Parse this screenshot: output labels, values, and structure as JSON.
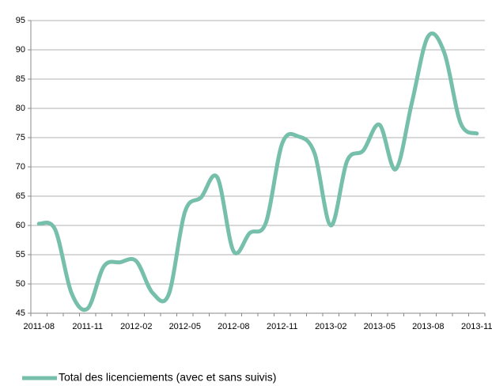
{
  "chart_data": {
    "type": "line",
    "categories": [
      "2011-08",
      null,
      null,
      "2011-11",
      null,
      null,
      "2012-02",
      null,
      null,
      "2012-05",
      null,
      null,
      "2012-08",
      null,
      null,
      "2012-11",
      null,
      null,
      "2013-02",
      null,
      null,
      "2013-05",
      null,
      null,
      "2013-08",
      null,
      null,
      "2013-11"
    ],
    "series": [
      {
        "name": "Total des licenciements (avec et sans suivis)",
        "color": "#76bfaa",
        "values": [
          60.3,
          59.3,
          48.5,
          45.8,
          53,
          53.7,
          53.9,
          48.5,
          48.2,
          62.3,
          64.8,
          68.2,
          55.6,
          58.7,
          60.5,
          74,
          75.2,
          72.3,
          60,
          71,
          72.8,
          77.2,
          69.6,
          81,
          92.3,
          89.5,
          77.5,
          75.7
        ]
      }
    ],
    "ylim": [
      45,
      95
    ],
    "yticks": [
      45,
      50,
      55,
      60,
      65,
      70,
      75,
      80,
      85,
      90,
      95
    ],
    "grid": true,
    "legend": "bottom"
  }
}
